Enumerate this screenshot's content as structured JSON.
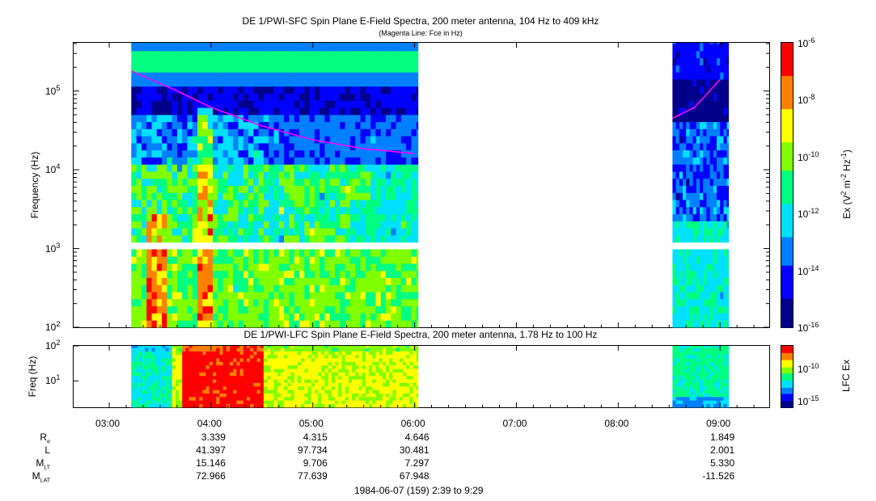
{
  "titles": {
    "sfc_title": "DE 1/PWI-SFC  Spin Plane E-Field Spectra, 200 meter antenna, 104 Hz to 409 kHz",
    "sfc_subtitle": "(Magenta Line: Fce in Hz)",
    "lfc_title": "DE 1/PWI-LFC  Spin Plane E-Field Spectra, 200 meter antenna, 1.78 Hz to 100 Hz"
  },
  "axes": {
    "sfc_ylabel": "Frequency (Hz)",
    "lfc_ylabel": "Freq (Hz)",
    "sfc_colorbar_label": "Ex (V² m⁻² Hz⁻¹)",
    "lfc_colorbar_label": "LFC Ex",
    "x_tick_labels": [
      "03:00",
      "04:00",
      "05:00",
      "06:00",
      "07:00",
      "08:00",
      "09:00"
    ],
    "footer": "1984-06-07 (159) 2:39 to 9:29"
  },
  "colors": {
    "spectrogram_scale": [
      "#00008b",
      "#0000ff",
      "#0080ff",
      "#00e0ff",
      "#00ff80",
      "#80ff00",
      "#ffff00",
      "#ff8000",
      "#ff0000"
    ],
    "fce_line": "#ff00ff"
  },
  "chart_data": [
    {
      "type": "heatmap",
      "title": "DE 1/PWI-SFC  Spin Plane E-Field Spectra, 200 meter antenna, 104 Hz to 409 kHz",
      "subtitle": "(Magenta Line: Fce in Hz)",
      "ylabel": "Frequency (Hz)",
      "y_scale": "log",
      "ylim": [
        100,
        409000
      ],
      "y_tick_labels": [
        "10^2",
        "10^3",
        "10^4",
        "10^5"
      ],
      "xlim": [
        "02:39",
        "09:29"
      ],
      "x_tick_labels": [
        "03:00",
        "04:00",
        "05:00",
        "06:00",
        "07:00",
        "08:00",
        "09:00"
      ],
      "data_intervals": [
        [
          "03:13",
          "06:02"
        ],
        [
          "08:32",
          "09:05"
        ]
      ],
      "colorbar": {
        "label": "Ex (V² m⁻² Hz⁻¹)",
        "scale": "log",
        "range": [
          1e-16,
          1e-06
        ],
        "tick_labels": [
          "10^-6",
          "10^-8",
          "10^-10",
          "10^-12",
          "10^-14",
          "10^-16"
        ]
      },
      "fce_line": {
        "segments": [
          {
            "time": [
              "03:13",
              "03:40",
              "04:00",
              "04:30",
              "05:00",
              "05:30",
              "06:00"
            ],
            "fce_hz": [
              180000,
              100000,
              62000,
              36000,
              24000,
              18500,
              16000
            ]
          },
          {
            "time": [
              "08:32",
              "08:45",
              "09:00"
            ],
            "fce_hz": [
              45000,
              62000,
              140000
            ]
          }
        ]
      }
    },
    {
      "type": "heatmap",
      "title": "DE 1/PWI-LFC  Spin Plane E-Field Spectra, 200 meter antenna, 1.78 Hz to 100 Hz",
      "ylabel": "Freq (Hz)",
      "y_scale": "log",
      "ylim": [
        1.78,
        100
      ],
      "y_tick_labels": [
        "10^1",
        "10^2"
      ],
      "xlim": [
        "02:39",
        "09:29"
      ],
      "data_intervals": [
        [
          "03:13",
          "06:02"
        ],
        [
          "08:32",
          "09:05"
        ]
      ],
      "colorbar": {
        "label": "LFC Ex",
        "scale": "log",
        "tick_labels": [
          "10^-10",
          "10^-15"
        ]
      }
    }
  ],
  "ephemeris": {
    "rows": [
      {
        "name": "R",
        "sub": "e",
        "values": [
          "3.339",
          "4.315",
          "4.646",
          "1.849"
        ]
      },
      {
        "name": "L",
        "sub": "",
        "values": [
          "41.397",
          "97.734",
          "30.481",
          "2.001"
        ]
      },
      {
        "name": "M",
        "sub": "LT",
        "values": [
          "15.146",
          "9.706",
          "7.297",
          "5.330"
        ]
      },
      {
        "name": "M",
        "sub": "LAT",
        "values": [
          "72.966",
          "77.639",
          "67.948",
          "-11.526"
        ]
      }
    ],
    "columns": [
      "04:00",
      "05:00",
      "06:00",
      "09:00"
    ]
  }
}
